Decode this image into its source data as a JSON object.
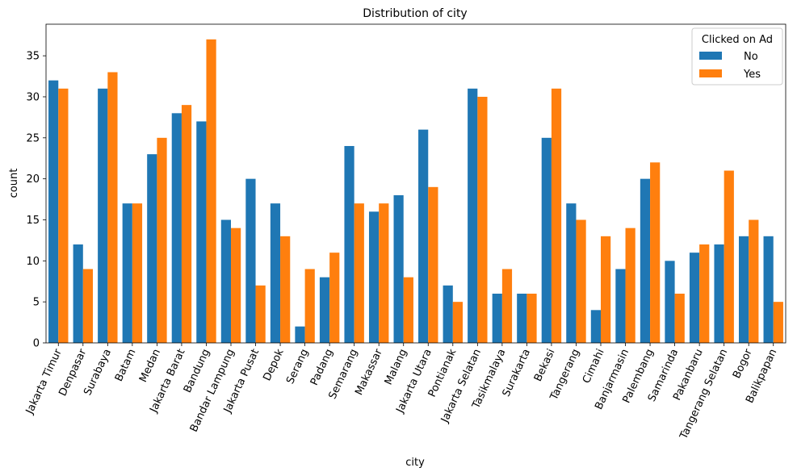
{
  "chart_data": {
    "type": "bar",
    "title": "Distribution of city",
    "xlabel": "city",
    "ylabel": "count",
    "ylim": [
      0,
      38.85
    ],
    "yticks": [
      0,
      5,
      10,
      15,
      20,
      25,
      30,
      35
    ],
    "grid": false,
    "categories": [
      "Jakarta Timur",
      "Denpasar",
      "Surabaya",
      "Batam",
      "Medan",
      "Jakarta Barat",
      "Bandung",
      "Bandar Lampung",
      "Jakarta Pusat",
      "Depok",
      "Serang",
      "Padang",
      "Semarang",
      "Makassar",
      "Malang",
      "Jakarta Utara",
      "Pontianak",
      "Jakarta Selatan",
      "Tasikmalaya",
      "Surakarta",
      "Bekasi",
      "Tangerang",
      "Cimahi",
      "Banjarmasin",
      "Palembang",
      "Samarinda",
      "Pakanbaru",
      "Tangerang Selatan",
      "Bogor",
      "Balikpapan"
    ],
    "series": [
      {
        "name": "No",
        "color": "#1f77b4",
        "values": [
          32,
          12,
          31,
          17,
          23,
          28,
          27,
          15,
          20,
          17,
          2,
          8,
          24,
          16,
          18,
          26,
          7,
          31,
          6,
          6,
          25,
          17,
          4,
          9,
          20,
          10,
          11,
          12,
          13,
          13
        ]
      },
      {
        "name": "Yes",
        "color": "#ff7f0e",
        "values": [
          31,
          9,
          33,
          17,
          25,
          29,
          37,
          14,
          7,
          13,
          9,
          11,
          17,
          17,
          8,
          19,
          5,
          30,
          9,
          6,
          31,
          15,
          13,
          14,
          22,
          6,
          12,
          21,
          15,
          5
        ]
      }
    ],
    "legend": {
      "title": "Clicked on Ad",
      "placement": "top-right"
    }
  }
}
